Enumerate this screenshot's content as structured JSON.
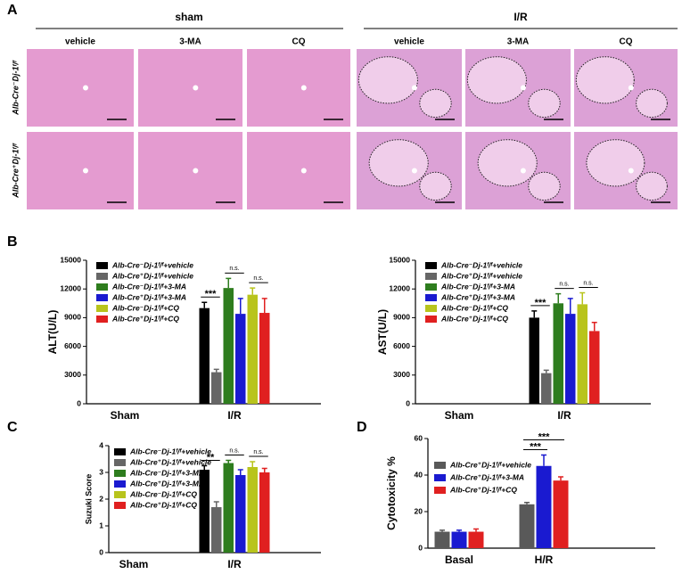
{
  "figure": {
    "panels": [
      "A",
      "B",
      "C",
      "D"
    ],
    "groups": [
      "sham",
      "I/R"
    ],
    "columns": [
      "vehicle",
      "3-MA",
      "CQ",
      "vehicle",
      "3-MA",
      "CQ"
    ],
    "rows": [
      "Alb-Cre⁻Dj-1ᶠ/ᶠ",
      "Alb-Cre⁺Dj-1ᶠ/ᶠ"
    ]
  },
  "chart_data": [
    {
      "type": "bar",
      "ylabel": "ALT(U/L)",
      "categories": [
        "Sham",
        "I/R"
      ],
      "ylim": [
        0,
        15000
      ],
      "yticks": [
        0,
        3000,
        6000,
        9000,
        12000,
        15000
      ],
      "series": [
        {
          "name": "Alb-Cre⁻Dj-1ᶠ/ᶠ+vehicle",
          "color": "#000000",
          "values": [
            0,
            10000
          ],
          "errors": [
            null,
            600
          ]
        },
        {
          "name": "Alb-Cre⁺Dj-1ᶠ/ᶠ+vehicle",
          "color": "#666666",
          "values": [
            0,
            3300
          ],
          "errors": [
            null,
            300
          ]
        },
        {
          "name": "Alb-Cre⁻Dj-1ᶠ/ᶠ+3-MA",
          "color": "#2e7d1e",
          "values": [
            0,
            12100
          ],
          "errors": [
            null,
            1000
          ]
        },
        {
          "name": "Alb-Cre⁺Dj-1ᶠ/ᶠ+3-MA",
          "color": "#1a1ad0",
          "values": [
            0,
            9400
          ],
          "errors": [
            null,
            1600
          ]
        },
        {
          "name": "Alb-Cre⁻Dj-1ᶠ/ᶠ+CQ",
          "color": "#b8c41c",
          "values": [
            0,
            11400
          ],
          "errors": [
            null,
            700
          ]
        },
        {
          "name": "Alb-Cre⁺Dj-1ᶠ/ᶠ+CQ",
          "color": "#e02020",
          "values": [
            0,
            9500
          ],
          "errors": [
            null,
            1500
          ]
        }
      ],
      "annotations": [
        "***",
        "n.s.",
        "n.s."
      ]
    },
    {
      "type": "bar",
      "ylabel": "AST(U/L)",
      "categories": [
        "Sham",
        "I/R"
      ],
      "ylim": [
        0,
        15000
      ],
      "yticks": [
        0,
        3000,
        6000,
        9000,
        12000,
        15000
      ],
      "series": [
        {
          "name": "Alb-Cre⁻Dj-1ᶠ/ᶠ+vehicle",
          "color": "#000000",
          "values": [
            0,
            9000
          ],
          "errors": [
            null,
            700
          ]
        },
        {
          "name": "Alb-Cre⁺Dj-1ᶠ/ᶠ+vehicle",
          "color": "#666666",
          "values": [
            0,
            3200
          ],
          "errors": [
            null,
            300
          ]
        },
        {
          "name": "Alb-Cre⁻Dj-1ᶠ/ᶠ+3-MA",
          "color": "#2e7d1e",
          "values": [
            0,
            10500
          ],
          "errors": [
            null,
            1000
          ]
        },
        {
          "name": "Alb-Cre⁺Dj-1ᶠ/ᶠ+3-MA",
          "color": "#1a1ad0",
          "values": [
            0,
            9400
          ],
          "errors": [
            null,
            1600
          ]
        },
        {
          "name": "Alb-Cre⁻Dj-1ᶠ/ᶠ+CQ",
          "color": "#b8c41c",
          "values": [
            0,
            10400
          ],
          "errors": [
            null,
            1200
          ]
        },
        {
          "name": "Alb-Cre⁺Dj-1ᶠ/ᶠ+CQ",
          "color": "#e02020",
          "values": [
            0,
            7600
          ],
          "errors": [
            null,
            900
          ]
        }
      ],
      "annotations": [
        "***",
        "n.s.",
        "n.s."
      ]
    },
    {
      "type": "bar",
      "ylabel": "Suzuki Score",
      "categories": [
        "Sham",
        "I/R"
      ],
      "ylim": [
        0,
        4
      ],
      "yticks": [
        0,
        1,
        2,
        3,
        4
      ],
      "series": [
        {
          "name": "Alb-Cre⁻Dj-1ᶠ/ᶠ+vehicle",
          "color": "#000000",
          "values": [
            0,
            3.1
          ],
          "errors": [
            null,
            0.15
          ]
        },
        {
          "name": "Alb-Cre⁺Dj-1ᶠ/ᶠ+vehicle",
          "color": "#666666",
          "values": [
            0,
            1.7
          ],
          "errors": [
            null,
            0.2
          ]
        },
        {
          "name": "Alb-Cre⁻Dj-1ᶠ/ᶠ+3-MA",
          "color": "#2e7d1e",
          "values": [
            0,
            3.35
          ],
          "errors": [
            null,
            0.1
          ]
        },
        {
          "name": "Alb-Cre⁺Dj-1ᶠ/ᶠ+3-MA",
          "color": "#1a1ad0",
          "values": [
            0,
            2.9
          ],
          "errors": [
            null,
            0.2
          ]
        },
        {
          "name": "Alb-Cre⁻Dj-1ᶠ/ᶠ+CQ",
          "color": "#b8c41c",
          "values": [
            0,
            3.2
          ],
          "errors": [
            null,
            0.2
          ]
        },
        {
          "name": "Alb-Cre⁺Dj-1ᶠ/ᶠ+CQ",
          "color": "#e02020",
          "values": [
            0,
            3.0
          ],
          "errors": [
            null,
            0.15
          ]
        }
      ],
      "annotations": [
        "**",
        "n.s.",
        "n.s."
      ]
    },
    {
      "type": "bar",
      "ylabel": "Cytotoxicity %",
      "categories": [
        "Basal",
        "H/R"
      ],
      "ylim": [
        0,
        60
      ],
      "yticks": [
        0,
        20,
        40,
        60
      ],
      "series": [
        {
          "name": "Alb-Cre⁺Dj-1ᶠ/ᶠ+vehicle",
          "color": "#595959",
          "values": [
            9,
            24
          ],
          "errors": [
            0.8,
            1
          ]
        },
        {
          "name": "Alb-Cre⁺Dj-1ᶠ/ᶠ+3-MA",
          "color": "#1a1ad0",
          "values": [
            9,
            45
          ],
          "errors": [
            0.8,
            6
          ]
        },
        {
          "name": "Alb-Cre⁺Dj-1ᶠ/ᶠ+CQ",
          "color": "#e02020",
          "values": [
            9,
            37
          ],
          "errors": [
            1.5,
            2
          ]
        }
      ],
      "annotations": [
        "***",
        "***"
      ]
    }
  ]
}
